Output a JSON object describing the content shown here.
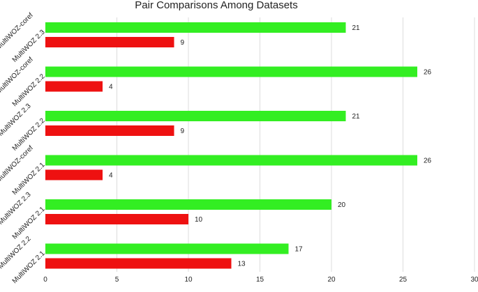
{
  "chart_data": {
    "type": "bar",
    "orientation": "horizontal",
    "title": "Pair Comparisons Among Datasets",
    "xlabel": "",
    "ylabel": "",
    "xlim": [
      0,
      30
    ],
    "xticks": [
      0,
      5,
      10,
      15,
      20,
      25,
      30
    ],
    "grid": true,
    "legend": "none",
    "colors": {
      "first": "#33ee22",
      "second": "#ee1111"
    },
    "groups": [
      {
        "first": {
          "label": "MultiWOZ-coref",
          "value": 21
        },
        "second": {
          "label": "MultiWOZ 2.3",
          "value": 9
        }
      },
      {
        "first": {
          "label": "MultiWOZ-coref",
          "value": 26
        },
        "second": {
          "label": "MultiWOZ 2.2",
          "value": 4
        }
      },
      {
        "first": {
          "label": "MultiWOZ 2.3",
          "value": 21
        },
        "second": {
          "label": "MultiWOZ 2.2",
          "value": 9
        }
      },
      {
        "first": {
          "label": "MultiWOZ-coref",
          "value": 26
        },
        "second": {
          "label": "MultiWOZ 2.1",
          "value": 4
        }
      },
      {
        "first": {
          "label": "MultiWOZ 2.3",
          "value": 20
        },
        "second": {
          "label": "MultiWOZ 2.1",
          "value": 10
        }
      },
      {
        "first": {
          "label": "MultiWOZ 2.2",
          "value": 17
        },
        "second": {
          "label": "MultiWOZ 2.1",
          "value": 13
        }
      }
    ]
  }
}
